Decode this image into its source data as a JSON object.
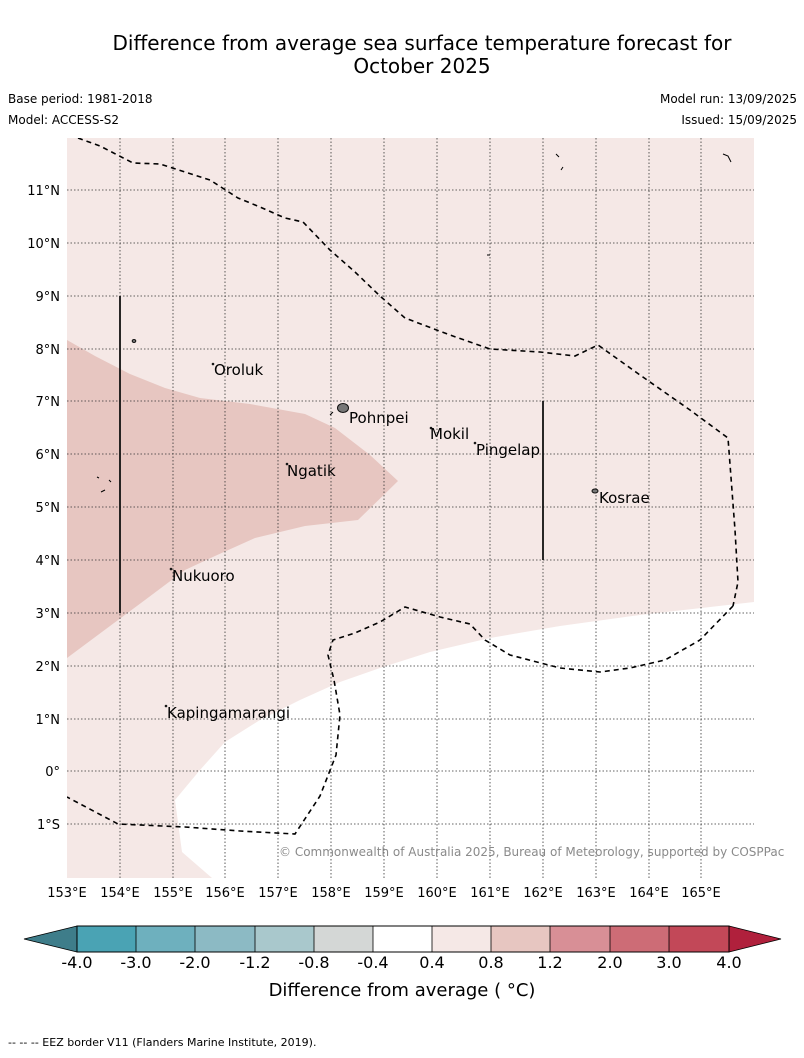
{
  "header": {
    "title_line1": "Difference from average sea surface temperature forecast for",
    "title_line2": "October 2025",
    "base_period": "Base period: 1981-2018",
    "model": "Model: ACCESS-S2",
    "model_run": "Model run: 13/09/2025",
    "issued": "Issued: 15/09/2025"
  },
  "map": {
    "lon_ticks": [
      "153°E",
      "154°E",
      "155°E",
      "156°E",
      "157°E",
      "158°E",
      "159°E",
      "160°E",
      "161°E",
      "162°E",
      "163°E",
      "164°E",
      "165°E"
    ],
    "lat_ticks": [
      "11°N",
      "10°N",
      "9°N",
      "8°N",
      "7°N",
      "6°N",
      "5°N",
      "4°N",
      "3°N",
      "2°N",
      "1°N",
      "0°",
      "1°S"
    ],
    "places": [
      {
        "name": "Oroluk"
      },
      {
        "name": "Pohnpei"
      },
      {
        "name": "Mokil"
      },
      {
        "name": "Pingelap"
      },
      {
        "name": "Ngatik"
      },
      {
        "name": "Kosrae"
      },
      {
        "name": "Nukuoro"
      },
      {
        "name": "Kapingamarangi"
      }
    ],
    "credit": "© Commonwealth of Australia 2025, Bureau of Meteorology, supported by COSPPac"
  },
  "colorbar": {
    "title": "Difference from average ( °C)",
    "labels": [
      "-4.0",
      "-3.0",
      "-2.0",
      "-1.2",
      "-0.8",
      "-0.4",
      "0.4",
      "0.8",
      "1.2",
      "2.0",
      "3.0",
      "4.0"
    ],
    "colors": [
      "#4aa3b4",
      "#6eb0be",
      "#8cbac4",
      "#a9c8cc",
      "#d4d7d6",
      "#ffffff",
      "#f5e8e6",
      "#e7c6c1",
      "#d88f96",
      "#cd6c76",
      "#c24858"
    ],
    "under_color": "#3e7d8a",
    "over_color": "#b0203c"
  },
  "footnote": "-- -- -- EEZ border V11 (Flanders Marine Institute, 2019)."
}
